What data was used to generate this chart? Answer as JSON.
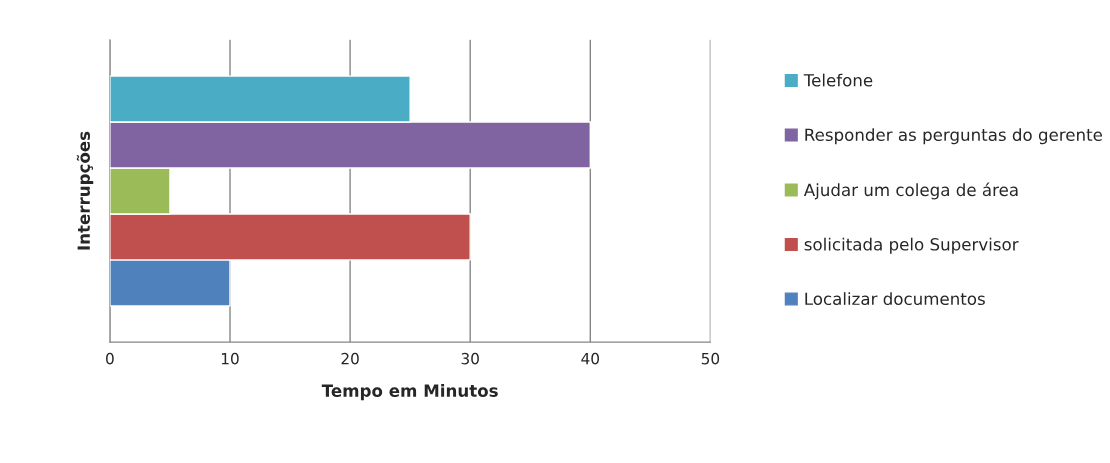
{
  "chart_data": {
    "type": "bar",
    "orientation": "horizontal",
    "categories": [
      null
    ],
    "series": [
      {
        "name": "Localizar documentos",
        "color": "#4f81bd",
        "values": [
          10
        ]
      },
      {
        "name": "solicitada pelo Supervisor",
        "color": "#c0504d",
        "values": [
          30
        ]
      },
      {
        "name": "Ajudar um colega de área",
        "color": "#9bbb59",
        "values": [
          5
        ]
      },
      {
        "name": "Responder as perguntas do gerente",
        "color": "#8064a2",
        "values": [
          40
        ]
      },
      {
        "name": "Telefone",
        "color": "#4bacc6",
        "values": [
          25
        ]
      }
    ],
    "xlabel": "Tempo em Minutos",
    "ylabel": "Interrupções",
    "xlim": [
      0,
      50
    ],
    "xticks": [
      0,
      10,
      20,
      30,
      40,
      50
    ],
    "grid": "x",
    "legend": "right",
    "tick_labels": "x"
  }
}
